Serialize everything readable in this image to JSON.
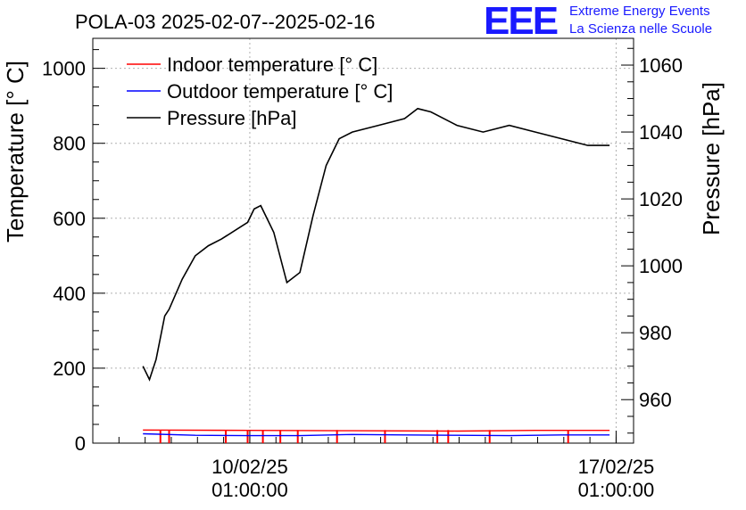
{
  "chart_data": {
    "type": "line",
    "title": "POLA-03 2025-02-07--2025-02-16",
    "ylabel_left": "Temperature [° C]",
    "ylabel_right": "Pressure [hPa]",
    "left_ylim": [
      0,
      1080
    ],
    "right_ylim": [
      947,
      1068
    ],
    "left_ticks": [
      0,
      200,
      400,
      600,
      800,
      1000
    ],
    "right_ticks": [
      960,
      980,
      1000,
      1020,
      1040,
      1060
    ],
    "x_time_range": [
      "2025-02-07T01:00:00",
      "2025-02-17T09:00:00"
    ],
    "x_ticks": [
      {
        "date": "2025-02-10T01:00:00",
        "line1": "10/02/25",
        "line2": "01:00:00"
      },
      {
        "date": "2025-02-17T01:00:00",
        "line1": "17/02/25",
        "line2": "01:00:00"
      }
    ],
    "grid": true,
    "legend_position": "top-left",
    "series": [
      {
        "name": "Indoor temperature [° C]",
        "color": "#ff0000",
        "axis": "left",
        "points": [
          [
            "2025-02-08T00:00:00",
            35
          ],
          [
            "2025-02-10T00:00:00",
            34
          ],
          [
            "2025-02-12T00:00:00",
            33
          ],
          [
            "2025-02-14T00:00:00",
            32
          ],
          [
            "2025-02-15T12:00:00",
            34
          ],
          [
            "2025-02-16T22:00:00",
            34
          ]
        ],
        "dropouts": [
          "2025-02-08T08:00:00",
          "2025-02-08T12:00:00",
          "2025-02-09T14:00:00",
          "2025-02-10T00:00:00",
          "2025-02-10T07:00:00",
          "2025-02-10T15:00:00",
          "2025-02-10T23:00:00",
          "2025-02-11T17:00:00",
          "2025-02-12T15:00:00",
          "2025-02-13T15:00:00",
          "2025-02-13T20:00:00",
          "2025-02-14T15:00:00",
          "2025-02-16T03:00:00"
        ]
      },
      {
        "name": "Outdoor temperature [° C]",
        "color": "#0000ff",
        "axis": "left",
        "points": [
          [
            "2025-02-08T00:00:00",
            25
          ],
          [
            "2025-02-09T00:00:00",
            21
          ],
          [
            "2025-02-10T00:00:00",
            20
          ],
          [
            "2025-02-11T00:00:00",
            20
          ],
          [
            "2025-02-12T00:00:00",
            23
          ],
          [
            "2025-02-13T00:00:00",
            22
          ],
          [
            "2025-02-14T00:00:00",
            21
          ],
          [
            "2025-02-15T00:00:00",
            20
          ],
          [
            "2025-02-16T00:00:00",
            22
          ],
          [
            "2025-02-16T22:00:00",
            22
          ]
        ]
      },
      {
        "name": "Pressure [hPa]",
        "color": "#000000",
        "axis": "right",
        "points": [
          [
            "2025-02-08T00:00:00",
            970
          ],
          [
            "2025-02-08T03:00:00",
            966
          ],
          [
            "2025-02-08T06:00:00",
            972
          ],
          [
            "2025-02-08T10:00:00",
            985
          ],
          [
            "2025-02-08T12:00:00",
            987
          ],
          [
            "2025-02-08T18:00:00",
            996
          ],
          [
            "2025-02-09T00:00:00",
            1003
          ],
          [
            "2025-02-09T06:00:00",
            1006
          ],
          [
            "2025-02-09T12:00:00",
            1008
          ],
          [
            "2025-02-10T00:00:00",
            1013
          ],
          [
            "2025-02-10T03:00:00",
            1017
          ],
          [
            "2025-02-10T06:00:00",
            1018
          ],
          [
            "2025-02-10T12:00:00",
            1010
          ],
          [
            "2025-02-10T18:00:00",
            995
          ],
          [
            "2025-02-11T00:00:00",
            998
          ],
          [
            "2025-02-11T06:00:00",
            1015
          ],
          [
            "2025-02-11T12:00:00",
            1030
          ],
          [
            "2025-02-11T18:00:00",
            1038
          ],
          [
            "2025-02-12T00:00:00",
            1040
          ],
          [
            "2025-02-12T12:00:00",
            1042
          ],
          [
            "2025-02-13T00:00:00",
            1044
          ],
          [
            "2025-02-13T06:00:00",
            1047
          ],
          [
            "2025-02-13T12:00:00",
            1046
          ],
          [
            "2025-02-14T00:00:00",
            1042
          ],
          [
            "2025-02-14T12:00:00",
            1040
          ],
          [
            "2025-02-15T00:00:00",
            1042
          ],
          [
            "2025-02-15T12:00:00",
            1040
          ],
          [
            "2025-02-16T00:00:00",
            1038
          ],
          [
            "2025-02-16T12:00:00",
            1036
          ],
          [
            "2025-02-16T22:00:00",
            1036
          ]
        ]
      }
    ]
  },
  "logo": {
    "mark": "EEE",
    "line1": "Extreme Energy Events",
    "line2": "La Scienza nelle Scuole"
  }
}
